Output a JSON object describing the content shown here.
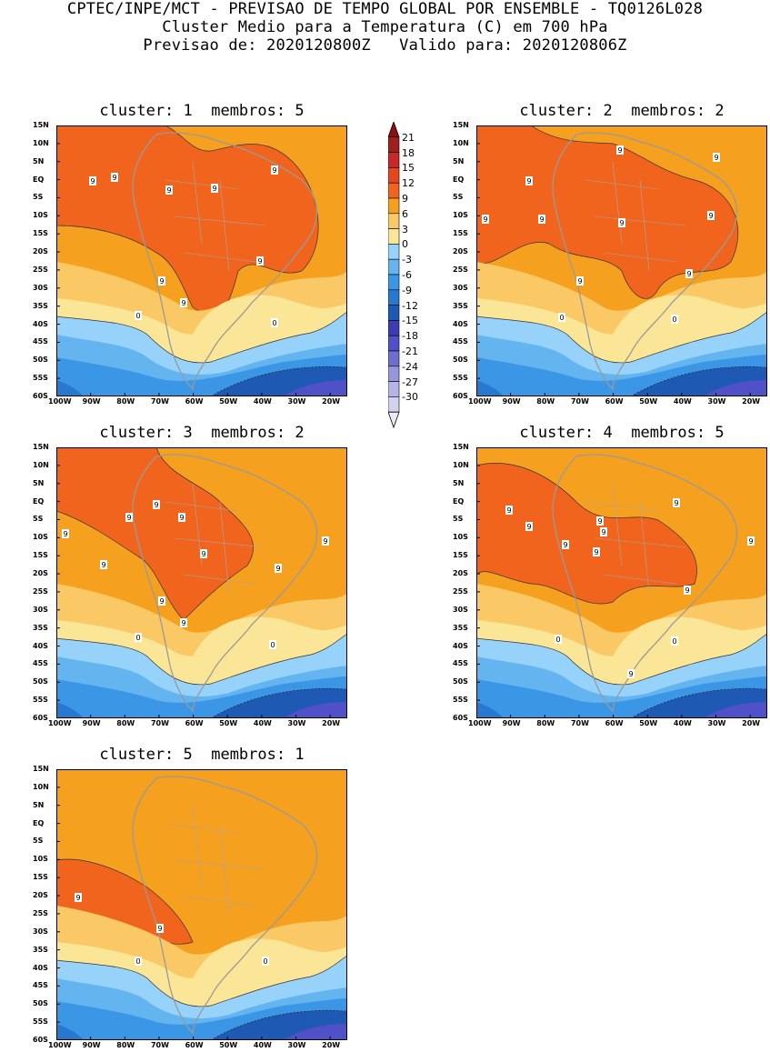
{
  "header": {
    "line1": "CPTEC/INPE/MCT - PREVISAO DE TEMPO GLOBAL POR ENSEMBLE - TQ0126L028",
    "line2": "Cluster Medio para a Temperatura (C) em 700 hPa",
    "line3": "Previsao de: 2020120800Z   Valido para: 2020120806Z"
  },
  "panels": [
    {
      "title": "cluster: 1  membros: 5",
      "contour_labels": [
        "9",
        "9",
        "9",
        "9",
        "9",
        "9",
        "9",
        "9",
        "0",
        "0"
      ]
    },
    {
      "title": "cluster: 2  membros: 2",
      "contour_labels": [
        "9",
        "9",
        "9",
        "9",
        "9",
        "9",
        "9",
        "9",
        "9",
        "0",
        "0"
      ]
    },
    {
      "title": "cluster: 3  membros: 2",
      "contour_labels": [
        "9",
        "9",
        "9",
        "9",
        "9",
        "9",
        "9",
        "9",
        "9",
        "9",
        "0",
        "0"
      ]
    },
    {
      "title": "cluster: 4  membros: 5",
      "contour_labels": [
        "9",
        "9",
        "9",
        "9",
        "9",
        "9",
        "9",
        "9",
        "9",
        "9",
        "0",
        "0"
      ]
    },
    {
      "title": "cluster: 5  membros: 1",
      "contour_labels": [
        "9",
        "9",
        "0",
        "0"
      ]
    }
  ],
  "axes": {
    "lat_labels": [
      "15N",
      "10N",
      "5N",
      "EQ",
      "5S",
      "10S",
      "15S",
      "20S",
      "25S",
      "30S",
      "35S",
      "40S",
      "45S",
      "50S",
      "55S",
      "60S"
    ],
    "lon_labels": [
      "100W",
      "90W",
      "80W",
      "70W",
      "60W",
      "50W",
      "40W",
      "30W",
      "20W"
    ]
  },
  "colorbar": {
    "labels": [
      "21",
      "18",
      "15",
      "12",
      "9",
      "6",
      "3",
      "0",
      "-3",
      "-6",
      "-9",
      "-12",
      "-15",
      "-18",
      "-21",
      "-24",
      "-27",
      "-30"
    ],
    "colors": [
      "#a01e1e",
      "#c82828",
      "#e6461e",
      "#f0641e",
      "#f5a01e",
      "#fac864",
      "#fae696",
      "#96d2fa",
      "#64b4f0",
      "#3c96e6",
      "#2878d2",
      "#1e5ab4",
      "#3c3cb4",
      "#5050c8",
      "#6e6ed2",
      "#9696dc",
      "#b4b4e6",
      "#d2d2f0"
    ],
    "top_color": "#8c1010",
    "bottom_color": "#ebebf8"
  },
  "chart_data": {
    "type": "heatmap",
    "variable": "Temperatura (C) em 700 hPa",
    "lat_range": [
      "60S",
      "15N"
    ],
    "lon_range": [
      "100W",
      "15W"
    ],
    "levels": [
      -30,
      -27,
      -24,
      -21,
      -18,
      -15,
      -12,
      -9,
      -6,
      -3,
      0,
      3,
      6,
      9,
      12,
      15,
      18,
      21
    ]
  }
}
